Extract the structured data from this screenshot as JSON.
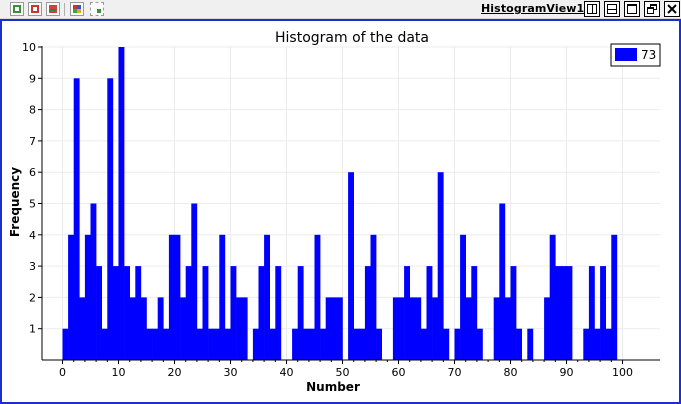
{
  "toolbar": {
    "view_name": "HistogramView1",
    "left_icons": [
      "zoom-to-data-icon",
      "reset-camera-icon",
      "split-view-icon",
      "color-palette-icon",
      "select-region-icon"
    ],
    "window_buttons": [
      "split-horizontal-icon",
      "split-vertical-icon",
      "maximize-icon",
      "restore-icon",
      "close-icon"
    ]
  },
  "colors": {
    "bar": "#0000ff",
    "frame": "#1c2fc8",
    "grid": "#ececec"
  },
  "chart_data": {
    "type": "bar",
    "title": "Histogram of the data",
    "xlabel": "Number",
    "ylabel": "Frequency",
    "xlim": [
      0,
      100
    ],
    "ylim": [
      0,
      10
    ],
    "xticks": [
      0,
      10,
      20,
      30,
      40,
      50,
      60,
      70,
      80,
      90,
      100
    ],
    "yticks": [
      1,
      2,
      3,
      4,
      5,
      6,
      7,
      8,
      9,
      10
    ],
    "grid": true,
    "legend": {
      "position": "top-right",
      "entries": [
        "73"
      ]
    },
    "bin_width": 1,
    "series": [
      {
        "name": "73",
        "color": "#0000ff",
        "values": [
          1,
          4,
          9,
          2,
          4,
          5,
          3,
          1,
          9,
          3,
          10,
          3,
          2,
          3,
          2,
          1,
          1,
          2,
          1,
          4,
          4,
          2,
          3,
          5,
          1,
          3,
          1,
          1,
          4,
          1,
          3,
          2,
          2,
          0,
          1,
          3,
          4,
          1,
          3,
          0,
          0,
          1,
          3,
          1,
          1,
          4,
          1,
          2,
          2,
          2,
          0,
          6,
          1,
          1,
          3,
          4,
          1,
          0,
          0,
          2,
          2,
          3,
          2,
          2,
          1,
          3,
          2,
          6,
          1,
          0,
          1,
          4,
          2,
          3,
          1,
          0,
          0,
          2,
          5,
          2,
          3,
          1,
          0,
          1,
          0,
          0,
          2,
          4,
          3,
          3,
          3,
          0,
          0,
          1,
          3,
          1,
          3,
          1,
          4
        ]
      }
    ]
  }
}
